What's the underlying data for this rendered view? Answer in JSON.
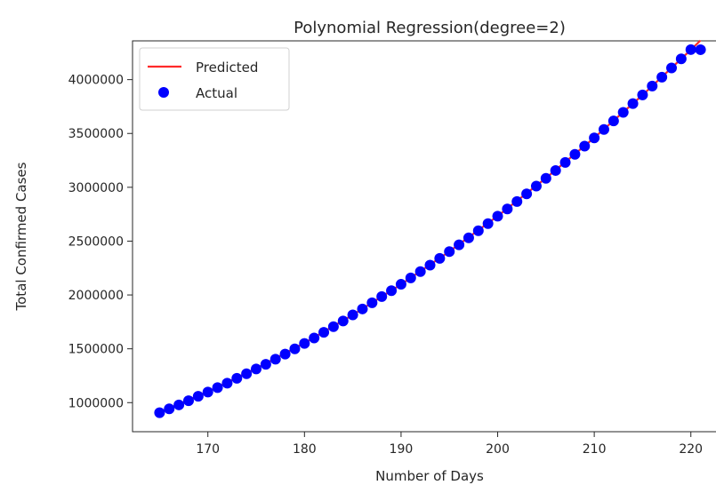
{
  "chart_data": {
    "type": "scatter",
    "title": "Polynomial Regression(degree=2)",
    "xlabel": "Number of Days",
    "ylabel": "Total Confirmed Cases",
    "xlim": [
      162.2,
      223.8
    ],
    "ylim": [
      730000,
      4360000
    ],
    "xticks": [
      170,
      180,
      190,
      200,
      210,
      220
    ],
    "yticks": [
      1000000,
      1500000,
      2000000,
      2500000,
      3000000,
      3500000,
      4000000
    ],
    "xtick_labels": [
      "170",
      "180",
      "190",
      "200",
      "210",
      "220"
    ],
    "ytick_labels": [
      "1000000",
      "1500000",
      "2000000",
      "2500000",
      "3000000",
      "3500000",
      "4000000"
    ],
    "grid": false,
    "legend": {
      "position": "upper-left"
    },
    "series": [
      {
        "name": "Predicted",
        "kind": "line",
        "color": "#ff2a2a",
        "x": [
          165,
          170,
          175,
          180,
          185,
          190,
          195,
          200,
          205,
          210,
          215,
          220,
          221
        ],
        "y": [
          910000,
          1102000,
          1317000,
          1554000,
          1815000,
          2098000,
          2404000,
          2733000,
          3085000,
          3460000,
          3857000,
          4277000,
          4364000
        ]
      },
      {
        "name": "Actual",
        "kind": "scatter",
        "color": "#0000ff",
        "x": [
          165,
          166,
          167,
          168,
          169,
          170,
          171,
          172,
          173,
          174,
          175,
          176,
          177,
          178,
          179,
          180,
          181,
          182,
          183,
          184,
          185,
          186,
          187,
          188,
          189,
          190,
          191,
          192,
          193,
          194,
          195,
          196,
          197,
          198,
          199,
          200,
          201,
          202,
          203,
          204,
          205,
          206,
          207,
          208,
          209,
          210,
          211,
          212,
          213,
          214,
          215,
          216,
          217,
          218,
          219,
          220,
          221
        ],
        "y": [
          906000,
          942000,
          979000,
          1018000,
          1059000,
          1098000,
          1139000,
          1181000,
          1226000,
          1268000,
          1313000,
          1356000,
          1403000,
          1451000,
          1499000,
          1550000,
          1600000,
          1653000,
          1706000,
          1758000,
          1815000,
          1870000,
          1927000,
          1985000,
          2040000,
          2099000,
          2158000,
          2217000,
          2277000,
          2340000,
          2403000,
          2466000,
          2531000,
          2597000,
          2663000,
          2732000,
          2799000,
          2868000,
          2939000,
          3011000,
          3083000,
          3156000,
          3231000,
          3306000,
          3382000,
          3459000,
          3537000,
          3616000,
          3696000,
          3777000,
          3858000,
          3940000,
          4023000,
          4108000,
          4193000,
          4279000,
          4278000
        ]
      }
    ]
  }
}
